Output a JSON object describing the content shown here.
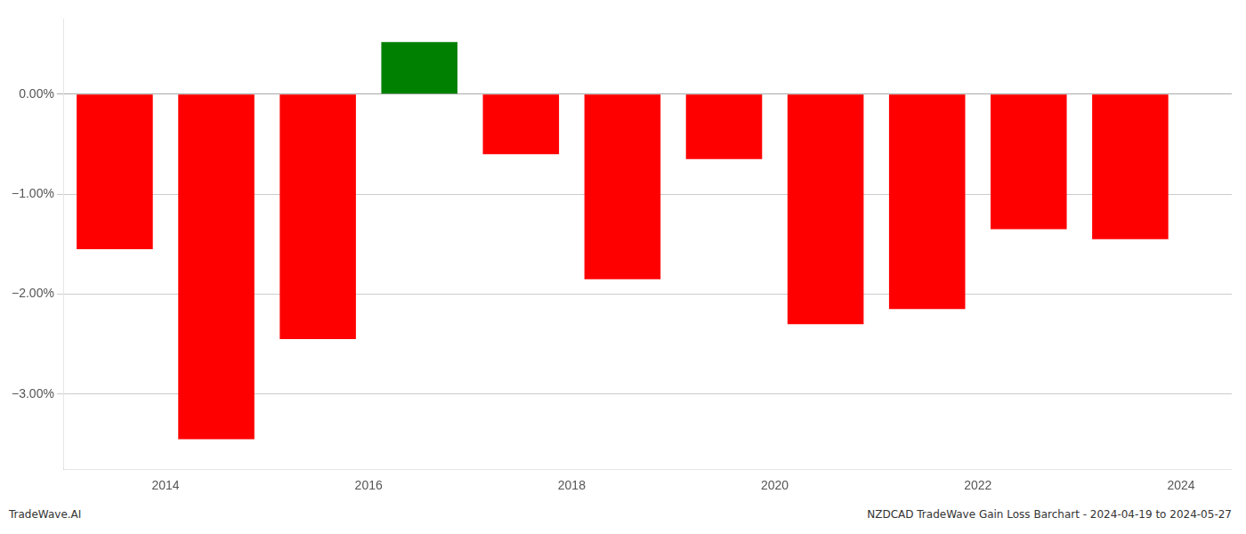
{
  "chart_data": {
    "type": "bar",
    "x": [
      2013.5,
      2014.5,
      2015.5,
      2016.5,
      2017.5,
      2018.5,
      2019.5,
      2020.5,
      2021.5,
      2022.5,
      2023.5
    ],
    "values": [
      -1.55,
      -3.45,
      -2.45,
      0.52,
      -0.6,
      -1.85,
      -0.65,
      -2.3,
      -2.15,
      -1.35,
      -1.45
    ],
    "colors": [
      "#ff0000",
      "#ff0000",
      "#ff0000",
      "#008000",
      "#ff0000",
      "#ff0000",
      "#ff0000",
      "#ff0000",
      "#ff0000",
      "#ff0000",
      "#ff0000"
    ],
    "xlim": [
      2013.0,
      2024.5
    ],
    "xticks": [
      2014,
      2016,
      2018,
      2020,
      2022,
      2024
    ],
    "ylim": [
      -3.75,
      0.75
    ],
    "yticks": [
      {
        "value": 0.0,
        "label": "0.00%"
      },
      {
        "value": -1.0,
        "label": "−1.00%"
      },
      {
        "value": -2.0,
        "label": "−2.00%"
      },
      {
        "value": -3.0,
        "label": "−3.00%"
      }
    ],
    "grid": "y",
    "annotations": [
      "TradeWave.AI",
      "NZDCAD TradeWave Gain Loss Barchart - 2024-04-19 to 2024-05-27"
    ]
  }
}
